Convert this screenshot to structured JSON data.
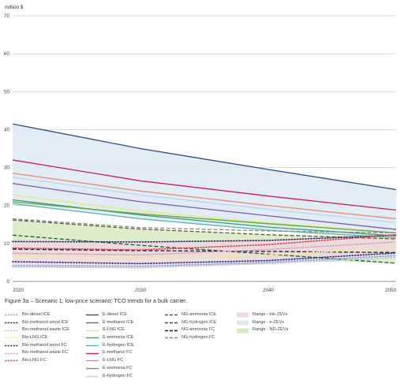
{
  "chart_data": {
    "type": "line",
    "ylabel": "million $",
    "xlim": [
      2020,
      2050
    ],
    "ylim": [
      0,
      70
    ],
    "yticks": [
      0,
      10,
      20,
      30,
      40,
      50,
      60,
      70
    ],
    "xticks": [
      2020,
      2030,
      2040,
      2050
    ],
    "grid": true,
    "caption": "Figure 3a – Scenario 1; low-price scenario; TCO trends for a bulk carrier.",
    "ranges": [
      {
        "name": "Range - e-ZEVs",
        "color": "#dce9f3",
        "x": [
          2020,
          2030,
          2040,
          2050
        ],
        "upper": [
          41.5,
          35,
          29.5,
          24.2
        ],
        "lower": [
          20.5,
          16.5,
          13.5,
          11.5
        ]
      },
      {
        "name": "Range - NG-ZEVs",
        "color": "#d7e9c1",
        "x": [
          2020,
          2030,
          2040,
          2050
        ],
        "upper": [
          16.2,
          13.8,
          12.3,
          11.2
        ],
        "lower": [
          7,
          6.5,
          5.6,
          4.8
        ]
      },
      {
        "name": "Range - bio-ZEVs",
        "color": "#efd8e0",
        "x": [
          2020,
          2030,
          2040,
          2050
        ],
        "upper": [
          11.2,
          10.4,
          11.2,
          12.5
        ],
        "lower": [
          3.8,
          3.6,
          4.8,
          6.8
        ]
      }
    ],
    "x": [
      2020,
      2030,
      2040,
      2050
    ],
    "series": [
      {
        "name": "Bio-diesel ICE",
        "color": "#8fa3d6",
        "style": "dotted",
        "values": [
          4.2,
          4.0,
          5.0,
          6.8
        ]
      },
      {
        "name": "Bio-methanol wood ICE",
        "color": "#1e2f78",
        "style": "dotted",
        "values": [
          5.2,
          4.7,
          5.5,
          7.5
        ]
      },
      {
        "name": "Bio-methanol waste ICE",
        "color": "#b7c4e6",
        "style": "dotted",
        "values": [
          3.8,
          3.6,
          4.7,
          6.3
        ]
      },
      {
        "name": "Bio-LNG ICE",
        "color": "#e9ef8a",
        "style": "dotted",
        "values": [
          6.8,
          6.2,
          7.0,
          8.8
        ]
      },
      {
        "name": "Bio-methanol wood FC",
        "color": "#2a2a55",
        "style": "dotted",
        "values": [
          10.5,
          10.4,
          10.8,
          12.2
        ]
      },
      {
        "name": "Bio-methanol waste FC",
        "color": "#d4a0ae",
        "style": "dotted",
        "values": [
          7.4,
          7.0,
          8.4,
          10.4
        ]
      },
      {
        "name": "Bio-LNG FC",
        "color": "#d63a4c",
        "style": "dotted",
        "values": [
          8.8,
          8.3,
          9.7,
          12.3
        ]
      },
      {
        "name": "E-diesel ICE",
        "color": "#2d4a8a",
        "style": "solid",
        "values": [
          41.5,
          35,
          29.5,
          24.2
        ]
      },
      {
        "name": "E-methanol ICE",
        "color": "#7b5ca8",
        "style": "solid",
        "values": [
          25.8,
          21,
          17.3,
          13.7
        ]
      },
      {
        "name": "E-LNG ICE",
        "color": "#e8e87a",
        "style": "solid",
        "values": [
          22.8,
          18.5,
          15.5,
          12.8
        ]
      },
      {
        "name": "E-ammonia ICE",
        "color": "#3f9f5a",
        "style": "solid",
        "values": [
          21.5,
          17.5,
          14.3,
          12
        ]
      },
      {
        "name": "E-hydrogen ICE",
        "color": "#5ab6b0",
        "style": "solid",
        "values": [
          20.5,
          16.5,
          13.5,
          11.5
        ]
      },
      {
        "name": "E-methanol FC",
        "color": "#c81d5a",
        "style": "solid",
        "values": [
          32,
          26.5,
          22.5,
          18.8
        ]
      },
      {
        "name": "E-LNG FC",
        "color": "#e88870",
        "style": "solid",
        "values": [
          28.5,
          23.8,
          20,
          16.5
        ]
      },
      {
        "name": "E-ammonia FC",
        "color": "#5aa64a",
        "style": "solid",
        "values": [
          21,
          17.8,
          15.2,
          12.8
        ]
      },
      {
        "name": "E-hydrogen FC",
        "color": "#b5d8ea",
        "style": "solid",
        "values": [
          27.5,
          22.8,
          19,
          15.5
        ]
      },
      {
        "name": "NG-ammonia ICE",
        "color": "#5d5a2a",
        "style": "dashed",
        "values": [
          16.2,
          13.8,
          12.3,
          11.2
        ]
      },
      {
        "name": "NG-hydrogen ICE",
        "color": "#1c5e33",
        "style": "dashed",
        "values": [
          12.2,
          9.5,
          7.2,
          4.8
        ]
      },
      {
        "name": "NG-ammonia FC",
        "color": "#1a1a3a",
        "style": "dashed",
        "values": [
          8.5,
          8.1,
          7.9,
          7.6
        ]
      },
      {
        "name": "NG-hydrogen FC",
        "color": "#8a8a8a",
        "style": "dashed",
        "values": [
          16.5,
          14.2,
          13.3,
          12.8
        ]
      }
    ],
    "legend_columns": [
      [
        "Bio-diesel ICE",
        "Bio-methanol wood ICE",
        "Bio-methanol waste ICE",
        "Bio-LNG ICE",
        "Bio-methanol wood FC",
        "Bio-methanol waste FC",
        "Bio-LNG FC"
      ],
      [
        "E-diesel ICE",
        "E-methanol ICE",
        "E-LNG ICE",
        "E-ammonia ICE",
        "E-hydrogen ICE",
        "E-methanol FC",
        "E-LNG FC",
        "E-ammonia FC",
        "E-hydrogen FC"
      ],
      [
        "NG-ammonia ICE",
        "NG-hydrogen ICE",
        "NG-ammonia FC",
        "NG-hydrogen FC"
      ],
      [
        "Range - bio-ZEVs",
        "Range - e-ZEVs",
        "Range - NG-ZEVs"
      ]
    ]
  }
}
